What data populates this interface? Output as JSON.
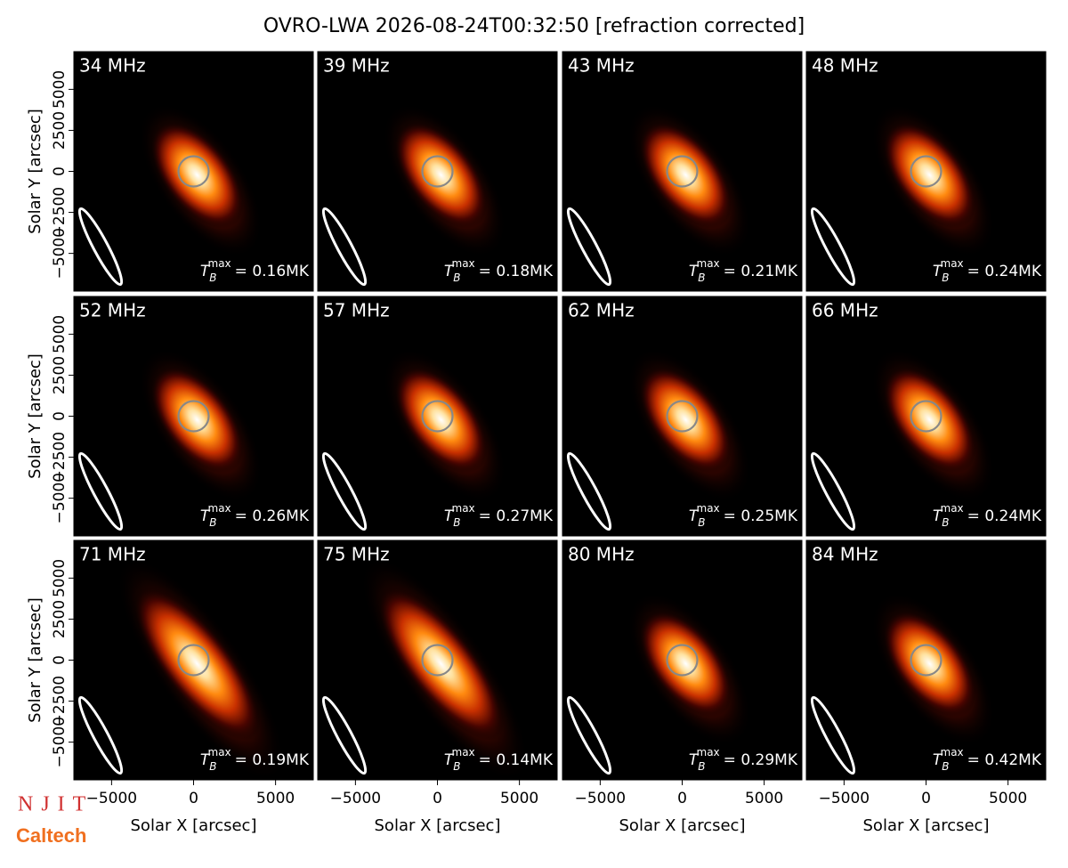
{
  "title": "OVRO-LWA 2026-08-24T00:32:50 [refraction corrected]",
  "logos": {
    "njit": "NJIT",
    "caltech": "Caltech"
  },
  "chart_data": [
    {
      "type": "image",
      "label": "34 MHz",
      "annotation": {
        "symbol": "T",
        "subscript": "B",
        "superscript": "max",
        "text": "= 0.16MK"
      },
      "xlim": [
        -7300,
        7300
      ],
      "ylim": [
        -7300,
        7300
      ],
      "ylabel": "Solar Y [arcsec]",
      "yticks": [
        {
          "value": -5000,
          "label": "−5000"
        },
        {
          "value": -2500,
          "label": "−2500"
        },
        0,
        2500,
        5000
      ]
    },
    {
      "type": "image",
      "label": "39 MHz",
      "annotation": {
        "symbol": "T",
        "subscript": "B",
        "superscript": "max",
        "text": "= 0.18MK"
      },
      "xlim": [
        -7300,
        7300
      ],
      "ylim": [
        -7300,
        7300
      ]
    },
    {
      "type": "image",
      "label": "43 MHz",
      "annotation": {
        "symbol": "T",
        "subscript": "B",
        "superscript": "max",
        "text": "= 0.21MK"
      },
      "xlim": [
        -7300,
        7300
      ],
      "ylim": [
        -7300,
        7300
      ]
    },
    {
      "type": "image",
      "label": "48 MHz",
      "annotation": {
        "symbol": "T",
        "subscript": "B",
        "superscript": "max",
        "text": "= 0.24MK"
      },
      "xlim": [
        -7300,
        7300
      ],
      "ylim": [
        -7300,
        7300
      ]
    },
    {
      "type": "image",
      "label": "52 MHz",
      "annotation": {
        "symbol": "T",
        "subscript": "B",
        "superscript": "max",
        "text": "= 0.26MK"
      },
      "xlim": [
        -7300,
        7300
      ],
      "ylim": [
        -7300,
        7300
      ],
      "ylabel": "Solar Y [arcsec]",
      "yticks": [
        {
          "value": -5000,
          "label": "−5000"
        },
        {
          "value": -2500,
          "label": "−2500"
        },
        0,
        2500,
        5000
      ]
    },
    {
      "type": "image",
      "label": "57 MHz",
      "annotation": {
        "symbol": "T",
        "subscript": "B",
        "superscript": "max",
        "text": "= 0.27MK"
      },
      "xlim": [
        -7300,
        7300
      ],
      "ylim": [
        -7300,
        7300
      ]
    },
    {
      "type": "image",
      "label": "62 MHz",
      "annotation": {
        "symbol": "T",
        "subscript": "B",
        "superscript": "max",
        "text": "= 0.25MK"
      },
      "xlim": [
        -7300,
        7300
      ],
      "ylim": [
        -7300,
        7300
      ]
    },
    {
      "type": "image",
      "label": "66 MHz",
      "annotation": {
        "symbol": "T",
        "subscript": "B",
        "superscript": "max",
        "text": "= 0.24MK"
      },
      "xlim": [
        -7300,
        7300
      ],
      "ylim": [
        -7300,
        7300
      ]
    },
    {
      "type": "image",
      "label": "71 MHz",
      "annotation": {
        "symbol": "T",
        "subscript": "B",
        "superscript": "max",
        "text": "= 0.19MK"
      },
      "xlim": [
        -7300,
        7300
      ],
      "ylim": [
        -7300,
        7300
      ],
      "ylabel": "Solar Y [arcsec]",
      "yticks": [
        {
          "value": -5000,
          "label": "−5000"
        },
        {
          "value": -2500,
          "label": "−2500"
        },
        0,
        2500,
        5000
      ],
      "xlabel": "Solar X [arcsec]",
      "xticks": [
        {
          "value": -5000,
          "label": "−5000"
        },
        0,
        5000
      ]
    },
    {
      "type": "image",
      "label": "75 MHz",
      "annotation": {
        "symbol": "T",
        "subscript": "B",
        "superscript": "max",
        "text": "= 0.14MK"
      },
      "xlim": [
        -7300,
        7300
      ],
      "ylim": [
        -7300,
        7300
      ],
      "xlabel": "Solar X [arcsec]",
      "xticks": [
        {
          "value": -5000,
          "label": "−5000"
        },
        0,
        5000
      ]
    },
    {
      "type": "image",
      "label": "80 MHz",
      "annotation": {
        "symbol": "T",
        "subscript": "B",
        "superscript": "max",
        "text": "= 0.29MK"
      },
      "xlim": [
        -7300,
        7300
      ],
      "ylim": [
        -7300,
        7300
      ],
      "xlabel": "Solar X [arcsec]",
      "xticks": [
        {
          "value": -5000,
          "label": "−5000"
        },
        0,
        5000
      ]
    },
    {
      "type": "image",
      "label": "84 MHz",
      "annotation": {
        "symbol": "T",
        "subscript": "B",
        "superscript": "max",
        "text": "= 0.42MK"
      },
      "xlim": [
        -7300,
        7300
      ],
      "ylim": [
        -7300,
        7300
      ],
      "xlabel": "Solar X [arcsec]",
      "xticks": [
        {
          "value": -5000,
          "label": "−5000"
        },
        0,
        5000
      ]
    }
  ]
}
